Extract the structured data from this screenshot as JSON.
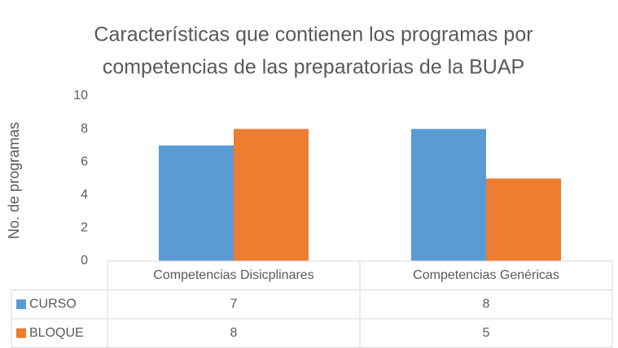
{
  "chart_data": {
    "type": "bar",
    "title": [
      "Características que contienen los programas por",
      "competencias de las preparatorias de la  BUAP"
    ],
    "y_label": "No. de programas",
    "categories": [
      "Competencias Disicplinares",
      "Competencias Genéricas"
    ],
    "series": [
      {
        "name": "CURSO",
        "color": "#5b9bd5",
        "values": [
          7,
          8
        ]
      },
      {
        "name": "BLOQUE",
        "color": "#ed7d31",
        "values": [
          8,
          5
        ]
      }
    ],
    "ylim": [
      0,
      10
    ],
    "yticks": [
      0,
      2,
      4,
      6,
      8,
      10
    ],
    "grid": false,
    "data_table": true
  }
}
